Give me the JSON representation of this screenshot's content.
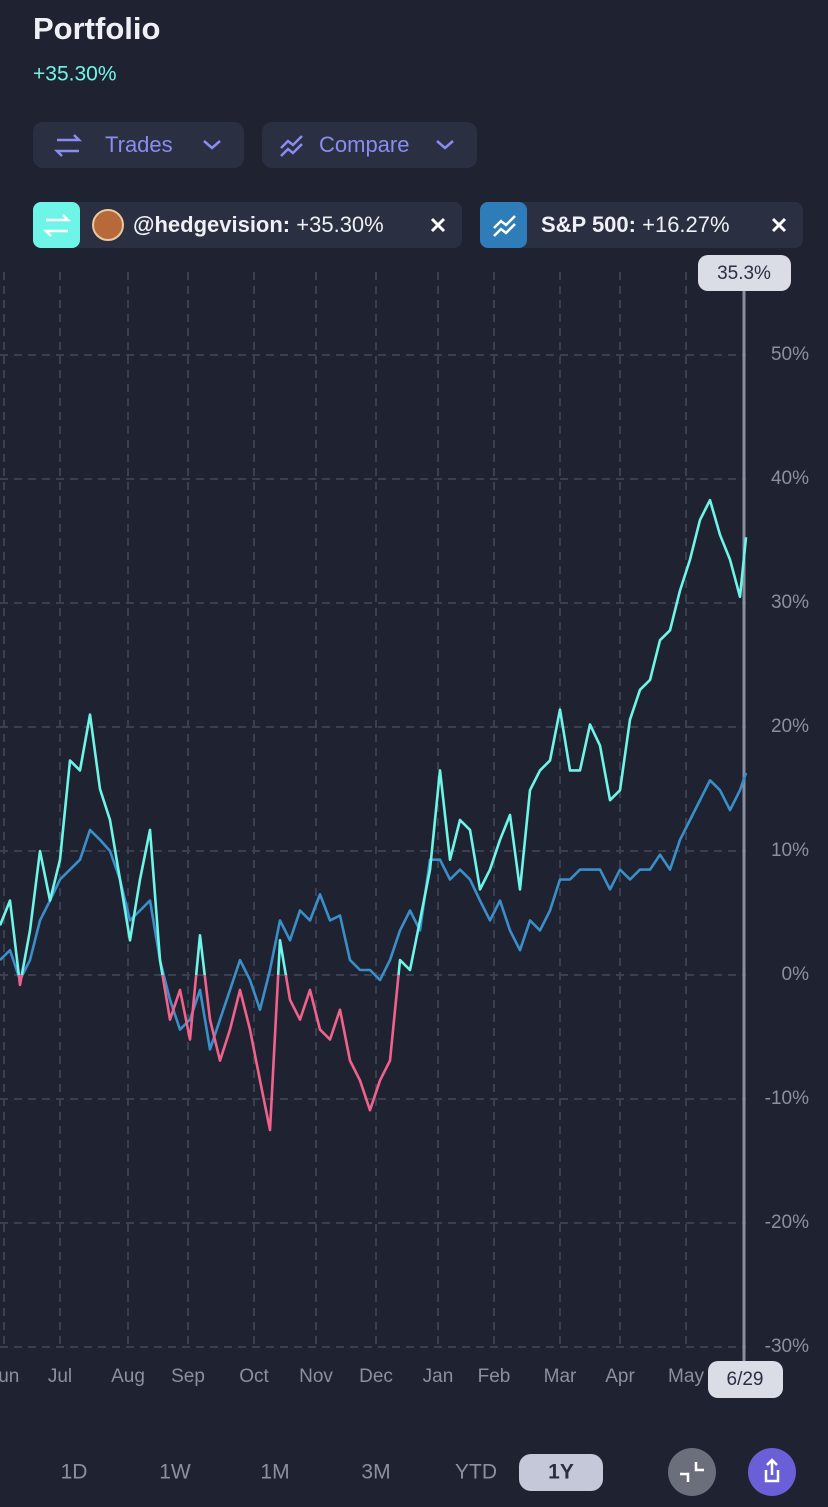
{
  "header": {
    "title": "Portfolio",
    "change": "+35.30%"
  },
  "toolbar": {
    "buttons": [
      "Trades",
      "Compare"
    ]
  },
  "chart_data": {
    "type": "line",
    "x": [
      0,
      5,
      10,
      15,
      20,
      25,
      30,
      35,
      40,
      45,
      50,
      55,
      60,
      65,
      70,
      75,
      80,
      85,
      90,
      95,
      100,
      105,
      110,
      115,
      120,
      125,
      130,
      135,
      140,
      145,
      150,
      155,
      160,
      165,
      170,
      175,
      180,
      185,
      190,
      195,
      200,
      205,
      210,
      215,
      220,
      225,
      230,
      235,
      240,
      245,
      250,
      255,
      260,
      265,
      270,
      275,
      280,
      285,
      290,
      295,
      300,
      305,
      310,
      315,
      320,
      325,
      330,
      335,
      340,
      345,
      350,
      355,
      360,
      365,
      370,
      373
    ],
    "series": [
      {
        "name": "@hedgevision:",
        "change_label": "+35.30%",
        "color": "#6ff5e8",
        "negative_color": "#f0628c",
        "values": [
          4.0,
          6.0,
          -0.8,
          3.6,
          10.0,
          6.0,
          9.3,
          17.3,
          16.5,
          21.0,
          15.0,
          12.5,
          7.7,
          2.8,
          7.7,
          11.7,
          1.2,
          -3.6,
          -1.2,
          -5.2,
          3.2,
          -3.6,
          -6.9,
          -4.4,
          -1.2,
          -4.4,
          -8.5,
          -12.5,
          2.8,
          -2.0,
          -3.6,
          -1.2,
          -4.4,
          -5.2,
          -2.8,
          -6.9,
          -8.5,
          -10.9,
          -8.5,
          -6.9,
          1.2,
          0.4,
          4.4,
          8.5,
          16.5,
          9.3,
          12.5,
          11.7,
          6.9,
          8.5,
          10.9,
          12.9,
          6.9,
          14.9,
          16.5,
          17.3,
          21.4,
          16.5,
          16.5,
          20.2,
          18.5,
          14.1,
          14.9,
          20.6,
          23.0,
          23.8,
          27.0,
          27.8,
          31.0,
          33.5,
          36.7,
          38.3,
          35.5,
          33.5,
          30.5,
          35.3
        ]
      },
      {
        "name": "S&P 500:",
        "change_label": "+16.27%",
        "color": "#3a8fc9",
        "values": [
          1.2,
          2.0,
          -0.4,
          1.2,
          4.4,
          6.0,
          7.7,
          8.5,
          9.3,
          11.7,
          10.9,
          10.0,
          7.7,
          4.4,
          5.2,
          6.0,
          1.2,
          -2.0,
          -4.4,
          -3.6,
          -1.2,
          -6.0,
          -3.6,
          -1.2,
          1.2,
          -0.4,
          -2.8,
          0.4,
          4.4,
          2.8,
          5.2,
          4.4,
          6.5,
          4.4,
          4.8,
          1.2,
          0.4,
          0.4,
          -0.4,
          1.2,
          3.6,
          5.2,
          3.6,
          9.3,
          9.3,
          7.7,
          8.5,
          7.7,
          6.0,
          4.4,
          6.0,
          3.6,
          2.0,
          4.4,
          3.6,
          5.2,
          7.7,
          7.7,
          8.5,
          8.5,
          8.5,
          6.9,
          8.5,
          7.7,
          8.5,
          8.5,
          9.7,
          8.5,
          10.9,
          12.5,
          14.1,
          15.7,
          14.9,
          13.3,
          14.9,
          16.3
        ]
      }
    ],
    "xlim": [
      0,
      373
    ],
    "xticks": [
      {
        "value": 2,
        "label": "Jun"
      },
      {
        "value": 30,
        "label": "Jul"
      },
      {
        "value": 64,
        "label": "Aug"
      },
      {
        "value": 94,
        "label": "Sep"
      },
      {
        "value": 127,
        "label": "Oct"
      },
      {
        "value": 158,
        "label": "Nov"
      },
      {
        "value": 188,
        "label": "Dec"
      },
      {
        "value": 219,
        "label": "Jan"
      },
      {
        "value": 247,
        "label": "Feb"
      },
      {
        "value": 280,
        "label": "Mar"
      },
      {
        "value": 310,
        "label": "Apr"
      },
      {
        "value": 343,
        "label": "May"
      }
    ],
    "ylim": [
      -31,
      58
    ],
    "yticks": [
      {
        "value": 50,
        "label": "50%"
      },
      {
        "value": 40,
        "label": "40%"
      },
      {
        "value": 30,
        "label": "30%"
      },
      {
        "value": 20,
        "label": "20%"
      },
      {
        "value": 10,
        "label": "10%"
      },
      {
        "value": 0,
        "label": "0%"
      },
      {
        "value": -10,
        "label": "-10%"
      },
      {
        "value": -20,
        "label": "-20%"
      },
      {
        "value": -30,
        "label": "-30%"
      }
    ],
    "grid": true,
    "cursor": {
      "x": 372,
      "y": 35.3,
      "y_label": "35.3%",
      "x_label": "6/29"
    }
  },
  "range_selector": {
    "options": [
      "1D",
      "1W",
      "1M",
      "3M",
      "YTD",
      "1Y"
    ],
    "selected": "1Y"
  }
}
